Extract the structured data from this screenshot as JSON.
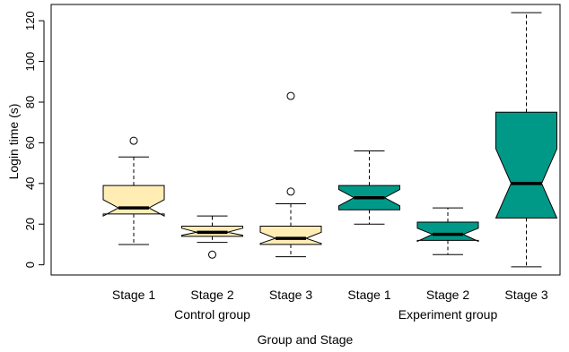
{
  "chart_data": {
    "type": "boxplot",
    "notched": true,
    "xlabel": "Group and Stage",
    "ylabel": "Login time (s)",
    "ylim": [
      -5,
      128
    ],
    "yticks": [
      0,
      20,
      40,
      60,
      80,
      100,
      120
    ],
    "groups": [
      {
        "label": "Control group",
        "color": "#FFEDB4"
      },
      {
        "label": "Experiment group",
        "color": "#009988"
      }
    ],
    "boxes": [
      {
        "label": "Stage 1",
        "group": 0,
        "whisker_low": 10,
        "q1": 25,
        "median": 28,
        "q3": 39,
        "whisker_high": 53,
        "notch_low": 24,
        "notch_high": 32,
        "outliers": [
          61
        ]
      },
      {
        "label": "Stage 2",
        "group": 0,
        "whisker_low": 11,
        "q1": 14,
        "median": 16,
        "q3": 19,
        "whisker_high": 24,
        "notch_low": 14.5,
        "notch_high": 18,
        "outliers": [
          5
        ]
      },
      {
        "label": "Stage 3",
        "group": 0,
        "whisker_low": 4,
        "q1": 10,
        "median": 13,
        "q3": 19,
        "whisker_high": 30,
        "notch_low": 10.5,
        "notch_high": 16,
        "outliers": [
          36,
          83
        ]
      },
      {
        "label": "Stage 1",
        "group": 1,
        "whisker_low": 20,
        "q1": 27,
        "median": 33,
        "q3": 39,
        "whisker_high": 56,
        "notch_low": 29,
        "notch_high": 37,
        "outliers": []
      },
      {
        "label": "Stage 2",
        "group": 1,
        "whisker_low": 5,
        "q1": 12,
        "median": 15,
        "q3": 21,
        "whisker_high": 28,
        "notch_low": 11.5,
        "notch_high": 18,
        "outliers": []
      },
      {
        "label": "Stage 3",
        "group": 1,
        "whisker_low": -1,
        "q1": 23,
        "median": 40,
        "q3": 75,
        "whisker_high": 124,
        "notch_low": 23,
        "notch_high": 57,
        "outliers": []
      }
    ]
  }
}
